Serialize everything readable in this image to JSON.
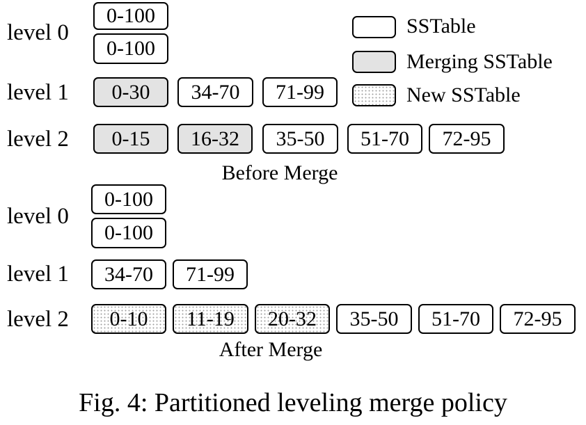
{
  "legend": [
    {
      "label": "SSTable",
      "kind": "plain"
    },
    {
      "label": "Merging SSTable",
      "kind": "merging"
    },
    {
      "label": "New SSTable",
      "kind": "new"
    }
  ],
  "before": {
    "caption": "Before Merge",
    "level0": {
      "label": "level 0",
      "tables": [
        "0-100",
        "0-100"
      ]
    },
    "level1": {
      "label": "level 1",
      "tables": [
        "0-30",
        "34-70",
        "71-99"
      ]
    },
    "level2": {
      "label": "level 2",
      "tables": [
        "0-15",
        "16-32",
        "35-50",
        "51-70",
        "72-95"
      ]
    }
  },
  "after": {
    "caption": "After Merge",
    "level0": {
      "label": "level 0",
      "tables": [
        "0-100",
        "0-100"
      ]
    },
    "level1": {
      "label": "level 1",
      "tables": [
        "34-70",
        "71-99"
      ]
    },
    "level2": {
      "label": "level 2",
      "tables": [
        "0-10",
        "11-19",
        "20-32",
        "35-50",
        "51-70",
        "72-95"
      ]
    }
  },
  "figure_caption": "Fig. 4: Partitioned leveling merge policy",
  "colors": {
    "merging_fill": "#e3e3e3",
    "new_dots": "#a0a0a0",
    "stroke": "#000000"
  }
}
